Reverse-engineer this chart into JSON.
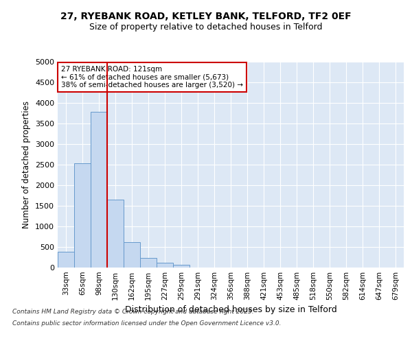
{
  "title_line1": "27, RYEBANK ROAD, KETLEY BANK, TELFORD, TF2 0EF",
  "title_line2": "Size of property relative to detached houses in Telford",
  "xlabel": "Distribution of detached houses by size in Telford",
  "ylabel": "Number of detached properties",
  "categories": [
    "33sqm",
    "65sqm",
    "98sqm",
    "130sqm",
    "162sqm",
    "195sqm",
    "227sqm",
    "259sqm",
    "291sqm",
    "324sqm",
    "356sqm",
    "388sqm",
    "421sqm",
    "453sqm",
    "485sqm",
    "518sqm",
    "550sqm",
    "582sqm",
    "614sqm",
    "647sqm",
    "679sqm"
  ],
  "values": [
    380,
    2540,
    3780,
    1650,
    620,
    240,
    110,
    60,
    0,
    0,
    0,
    0,
    0,
    0,
    0,
    0,
    0,
    0,
    0,
    0,
    0
  ],
  "bar_color": "#c5d8f0",
  "bar_edge_color": "#6699cc",
  "vline_color": "#cc0000",
  "annotation_text": "27 RYEBANK ROAD: 121sqm\n← 61% of detached houses are smaller (5,673)\n38% of semi-detached houses are larger (3,520) →",
  "annotation_box_color": "#cc0000",
  "annotation_text_color": "#000000",
  "ylim": [
    0,
    5000
  ],
  "yticks": [
    0,
    500,
    1000,
    1500,
    2000,
    2500,
    3000,
    3500,
    4000,
    4500,
    5000
  ],
  "background_color": "#ffffff",
  "plot_bg_color": "#dde8f5",
  "grid_color": "#ffffff",
  "footer_line1": "Contains HM Land Registry data © Crown copyright and database right 2025.",
  "footer_line2": "Contains public sector information licensed under the Open Government Licence v3.0."
}
